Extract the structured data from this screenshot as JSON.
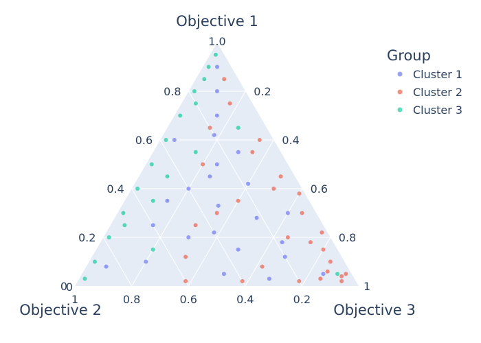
{
  "chart_data": {
    "type": "scatter",
    "subtype": "ternary",
    "title": "",
    "axes": {
      "a": {
        "title": "Objective 1",
        "range": [
          0,
          1
        ],
        "ticks": [
          "0",
          "0.2",
          "0.4",
          "0.6",
          "0.8",
          "1.0"
        ]
      },
      "b": {
        "title": "Objective 2",
        "range": [
          0,
          1
        ],
        "ticks": [
          "0",
          "0.2",
          "0.4",
          "0.6",
          "0.8",
          "1"
        ]
      },
      "c": {
        "title": "Objective 3",
        "range": [
          0,
          1
        ],
        "ticks": [
          "0",
          "0.2",
          "0.4",
          "0.6",
          "0.8",
          "1"
        ]
      }
    },
    "grid": true,
    "legend": {
      "title": "Group",
      "position": "top-right"
    },
    "colors": {
      "plot_bg": "#e5ecf6",
      "grid": "#ffffff",
      "text": "#2a3f5f"
    },
    "series": [
      {
        "name": "Cluster 1",
        "color": "#636efa",
        "points": [
          [
            0.62,
            0.2,
            0.18
          ],
          [
            0.45,
            0.3,
            0.25
          ],
          [
            0.33,
            0.33,
            0.34
          ],
          [
            0.2,
            0.5,
            0.3
          ],
          [
            0.15,
            0.35,
            0.5
          ],
          [
            0.55,
            0.15,
            0.3
          ],
          [
            0.7,
            0.15,
            0.15
          ],
          [
            0.1,
            0.7,
            0.2
          ],
          [
            0.05,
            0.45,
            0.5
          ],
          [
            0.3,
            0.1,
            0.6
          ],
          [
            0.25,
            0.6,
            0.15
          ],
          [
            0.4,
            0.4,
            0.2
          ],
          [
            0.8,
            0.1,
            0.1
          ],
          [
            0.12,
            0.2,
            0.68
          ],
          [
            0.5,
            0.25,
            0.25
          ],
          [
            0.35,
            0.5,
            0.15
          ],
          [
            0.08,
            0.85,
            0.07
          ],
          [
            0.03,
            0.3,
            0.67
          ],
          [
            0.6,
            0.35,
            0.05
          ],
          [
            0.18,
            0.18,
            0.64
          ],
          [
            0.28,
            0.22,
            0.5
          ],
          [
            0.42,
            0.18,
            0.4
          ],
          [
            0.22,
            0.4,
            0.38
          ],
          [
            0.9,
            0.05,
            0.05
          ],
          [
            0.05,
            0.1,
            0.85
          ]
        ]
      },
      {
        "name": "Cluster 2",
        "color": "#ef553b",
        "points": [
          [
            0.02,
            0.05,
            0.93
          ],
          [
            0.05,
            0.02,
            0.93
          ],
          [
            0.1,
            0.05,
            0.85
          ],
          [
            0.03,
            0.12,
            0.85
          ],
          [
            0.15,
            0.05,
            0.8
          ],
          [
            0.3,
            0.05,
            0.65
          ],
          [
            0.45,
            0.05,
            0.5
          ],
          [
            0.6,
            0.05,
            0.35
          ],
          [
            0.75,
            0.08,
            0.17
          ],
          [
            0.2,
            0.15,
            0.65
          ],
          [
            0.35,
            0.25,
            0.4
          ],
          [
            0.5,
            0.3,
            0.2
          ],
          [
            0.25,
            0.45,
            0.3
          ],
          [
            0.4,
            0.1,
            0.5
          ],
          [
            0.02,
            0.6,
            0.38
          ],
          [
            0.02,
            0.4,
            0.58
          ],
          [
            0.02,
            0.2,
            0.78
          ],
          [
            0.08,
            0.3,
            0.62
          ],
          [
            0.55,
            0.1,
            0.35
          ],
          [
            0.65,
            0.2,
            0.15
          ],
          [
            0.12,
            0.55,
            0.33
          ],
          [
            0.3,
            0.35,
            0.35
          ],
          [
            0.18,
            0.08,
            0.74
          ],
          [
            0.85,
            0.05,
            0.1
          ],
          [
            0.04,
            0.04,
            0.92
          ],
          [
            0.06,
            0.08,
            0.86
          ],
          [
            0.38,
            0.02,
            0.6
          ],
          [
            0.22,
            0.02,
            0.76
          ]
        ]
      },
      {
        "name": "Cluster 3",
        "color": "#00cc96",
        "points": [
          [
            0.95,
            0.03,
            0.02
          ],
          [
            0.9,
            0.08,
            0.02
          ],
          [
            0.8,
            0.18,
            0.02
          ],
          [
            0.7,
            0.28,
            0.02
          ],
          [
            0.6,
            0.38,
            0.02
          ],
          [
            0.5,
            0.48,
            0.02
          ],
          [
            0.4,
            0.58,
            0.02
          ],
          [
            0.3,
            0.68,
            0.02
          ],
          [
            0.2,
            0.78,
            0.02
          ],
          [
            0.1,
            0.88,
            0.02
          ],
          [
            0.03,
            0.95,
            0.02
          ],
          [
            0.55,
            0.3,
            0.15
          ],
          [
            0.35,
            0.55,
            0.1
          ],
          [
            0.25,
            0.7,
            0.05
          ],
          [
            0.15,
            0.65,
            0.2
          ],
          [
            0.05,
            0.05,
            0.9
          ],
          [
            0.65,
            0.1,
            0.25
          ],
          [
            0.45,
            0.45,
            0.1
          ],
          [
            0.85,
            0.12,
            0.03
          ],
          [
            0.75,
            0.2,
            0.05
          ]
        ]
      }
    ]
  }
}
